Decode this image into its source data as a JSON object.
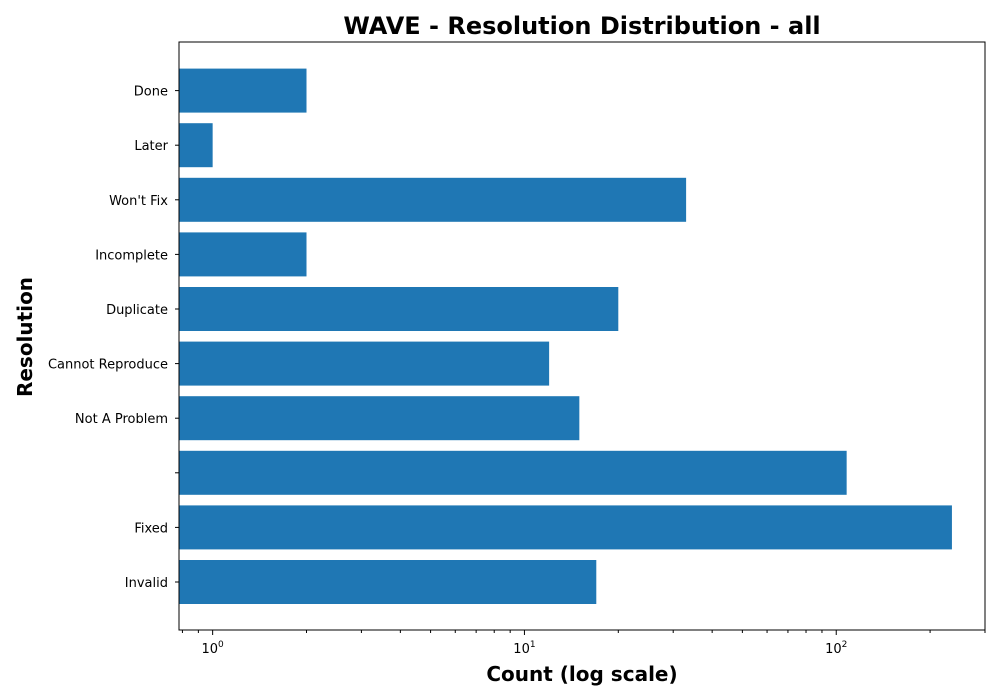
{
  "chart_data": {
    "type": "bar",
    "orientation": "horizontal",
    "title": "WAVE - Resolution Distribution - all",
    "xlabel": "Count (log scale)",
    "ylabel": "Resolution",
    "x_scale": "log",
    "xlim": [
      0.78,
      300
    ],
    "x_ticks": [
      {
        "base": "10",
        "exp": "0",
        "value": 1
      },
      {
        "base": "10",
        "exp": "1",
        "value": 10
      },
      {
        "base": "10",
        "exp": "2",
        "value": 100
      }
    ],
    "categories": [
      "Done",
      "Later",
      "Won't Fix",
      "Incomplete",
      "Duplicate",
      "Cannot Reproduce",
      "Not A Problem",
      "",
      "Fixed",
      "Invalid"
    ],
    "values": [
      2,
      1,
      33,
      2,
      20,
      12,
      15,
      108,
      235,
      17
    ],
    "bar_color": "#1f77b4",
    "grid": false,
    "legend": "none"
  }
}
